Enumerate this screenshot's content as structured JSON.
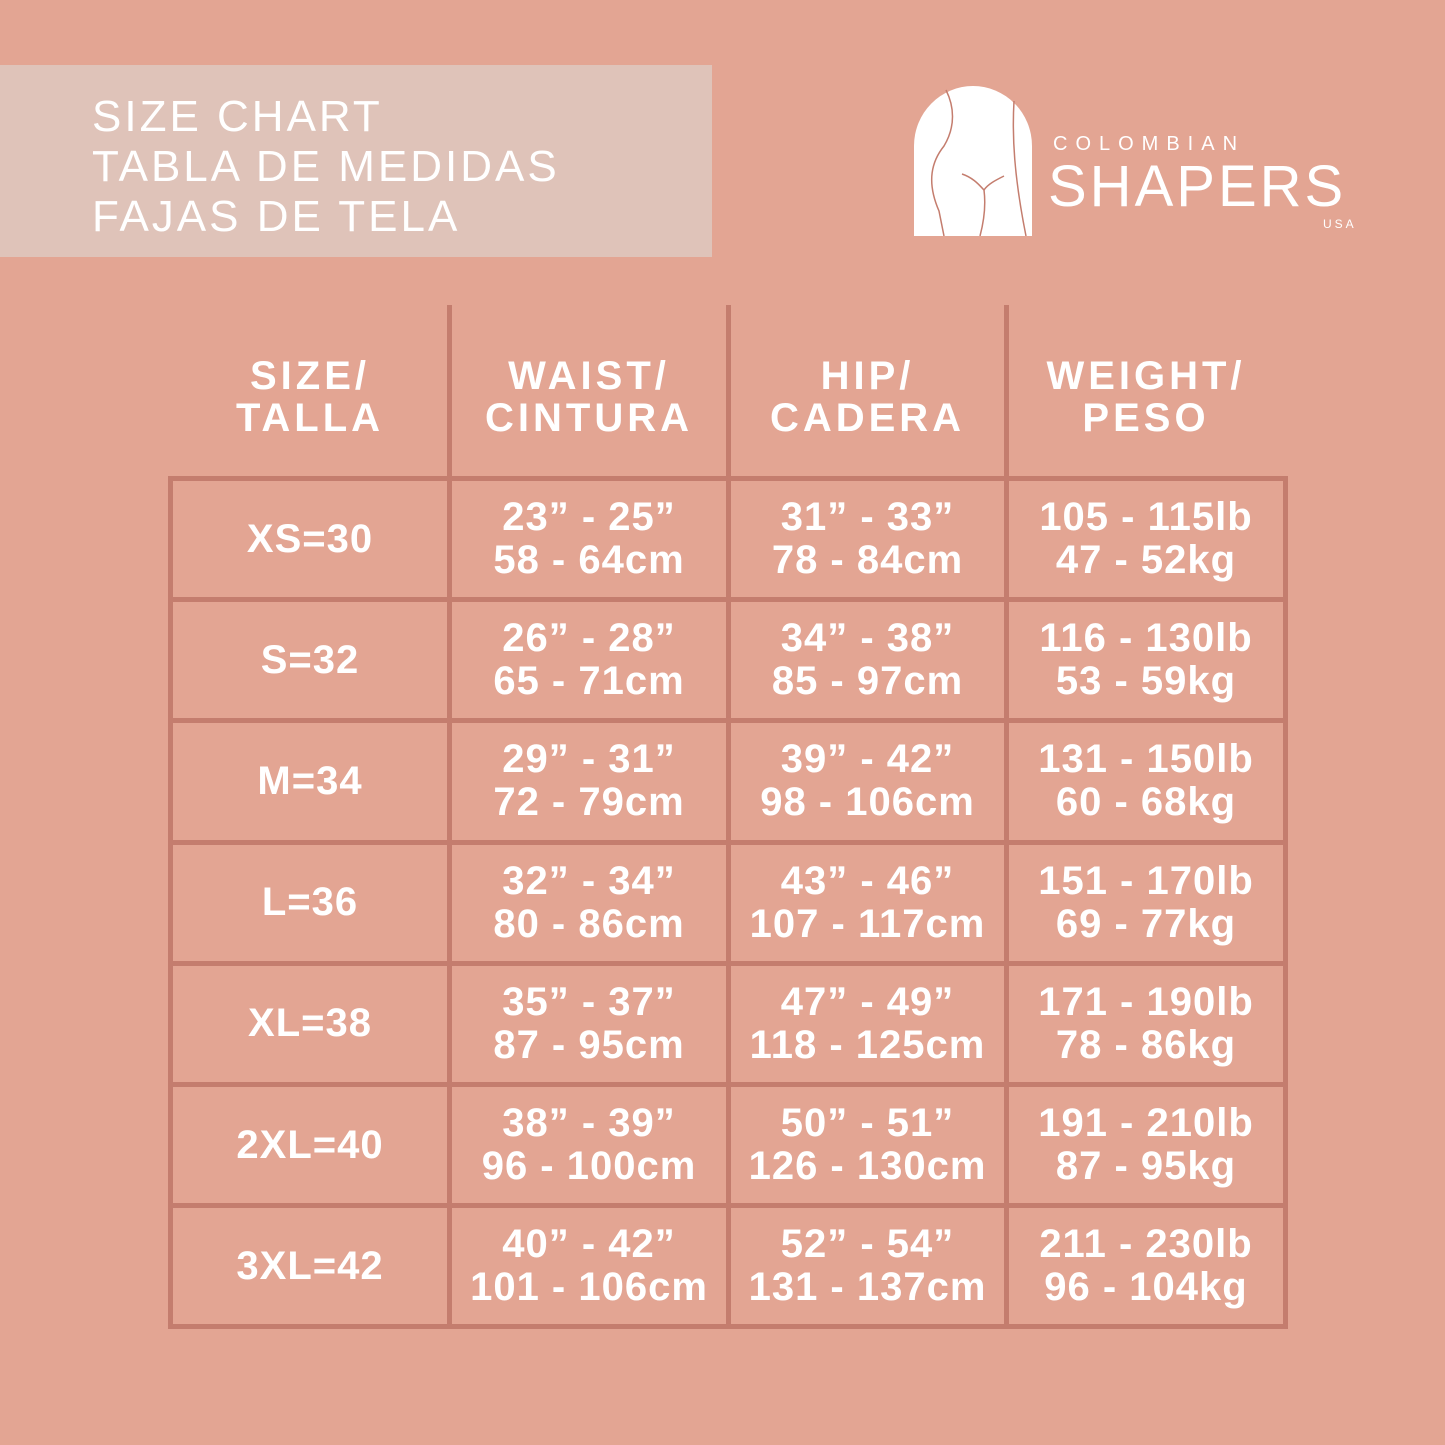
{
  "title": {
    "line1": "SIZE CHART",
    "line2": "TABLA DE MEDIDAS",
    "line3": "FAJAS DE TELA"
  },
  "brand": {
    "top": "COLOMBIAN",
    "main": "SHAPERS",
    "sub": "USA"
  },
  "colors": {
    "background": "#e3a593",
    "title_box": "#dfc3b9",
    "grid_lines": "#c47d6e",
    "text": "#ffffff"
  },
  "table": {
    "headers": [
      [
        "SIZE/",
        "TALLA"
      ],
      [
        "WAIST/",
        "CINTURA"
      ],
      [
        "HIP/",
        "CADERA"
      ],
      [
        "WEIGHT/",
        "PESO"
      ]
    ],
    "rows": [
      {
        "size": "XS=30",
        "waist": [
          "23” - 25”",
          "58 - 64cm"
        ],
        "hip": [
          "31” - 33”",
          "78 - 84cm"
        ],
        "weight": [
          "105 - 115lb",
          "47 - 52kg"
        ]
      },
      {
        "size": "S=32",
        "waist": [
          "26” - 28”",
          "65 - 71cm"
        ],
        "hip": [
          "34” - 38”",
          "85 - 97cm"
        ],
        "weight": [
          "116 - 130lb",
          "53 - 59kg"
        ]
      },
      {
        "size": "M=34",
        "waist": [
          "29” - 31”",
          "72 - 79cm"
        ],
        "hip": [
          "39” - 42”",
          "98 - 106cm"
        ],
        "weight": [
          "131 - 150lb",
          "60 - 68kg"
        ]
      },
      {
        "size": "L=36",
        "waist": [
          "32” - 34”",
          "80 - 86cm"
        ],
        "hip": [
          "43” - 46”",
          "107 - 117cm"
        ],
        "weight": [
          "151 - 170lb",
          "69 - 77kg"
        ]
      },
      {
        "size": "XL=38",
        "waist": [
          "35” - 37”",
          "87 - 95cm"
        ],
        "hip": [
          "47” - 49”",
          "118 - 125cm"
        ],
        "weight": [
          "171 - 190lb",
          "78 - 86kg"
        ]
      },
      {
        "size": "2XL=40",
        "waist": [
          "38” - 39”",
          "96 - 100cm"
        ],
        "hip": [
          "50” - 51”",
          "126 - 130cm"
        ],
        "weight": [
          "191 - 210lb",
          "87 - 95kg"
        ]
      },
      {
        "size": "3XL=42",
        "waist": [
          "40” - 42”",
          "101 - 106cm"
        ],
        "hip": [
          "52” - 54”",
          "131 - 137cm"
        ],
        "weight": [
          "211 - 230lb",
          "96 - 104kg"
        ]
      }
    ]
  }
}
